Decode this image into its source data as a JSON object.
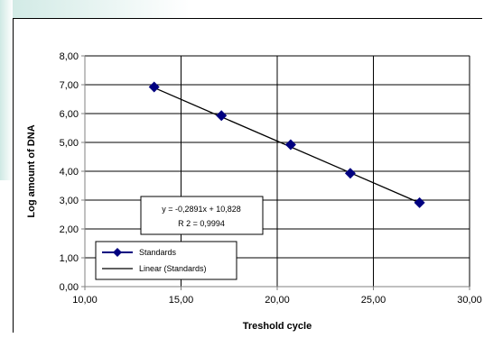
{
  "chart_data": {
    "type": "scatter",
    "xlabel": "Treshold cycle",
    "ylabel": "Log amount of DNA",
    "xlim": [
      10,
      30
    ],
    "ylim": [
      0,
      8
    ],
    "xticks": [
      10,
      15,
      20,
      25,
      30
    ],
    "yticks": [
      0,
      1,
      2,
      3,
      4,
      5,
      6,
      7,
      8
    ],
    "xtick_labels": [
      "10,00",
      "15,00",
      "20,00",
      "25,00",
      "30,00"
    ],
    "ytick_labels": [
      "0,00",
      "1,00",
      "2,00",
      "3,00",
      "4,00",
      "5,00",
      "6,00",
      "7,00",
      "8,00"
    ],
    "grid": "vertical and horizontal major gridlines",
    "series": [
      {
        "name": "Standards",
        "marker": "diamond",
        "color": "#000080",
        "x": [
          13.6,
          17.1,
          20.7,
          23.8,
          27.4
        ],
        "y": [
          6.92,
          5.93,
          4.92,
          3.93,
          2.91
        ]
      }
    ],
    "trendline": {
      "name": "Linear (Standards)",
      "type": "linear",
      "slope": -0.2891,
      "intercept": 10.828,
      "color": "#000000"
    },
    "annotation": {
      "equation": "y = -0,2891x + 10,828",
      "r2": "R 2 = 0,9994"
    },
    "legend": {
      "placement": "bottom-left",
      "entries": [
        "Standards",
        "Linear (Standards)"
      ]
    }
  }
}
